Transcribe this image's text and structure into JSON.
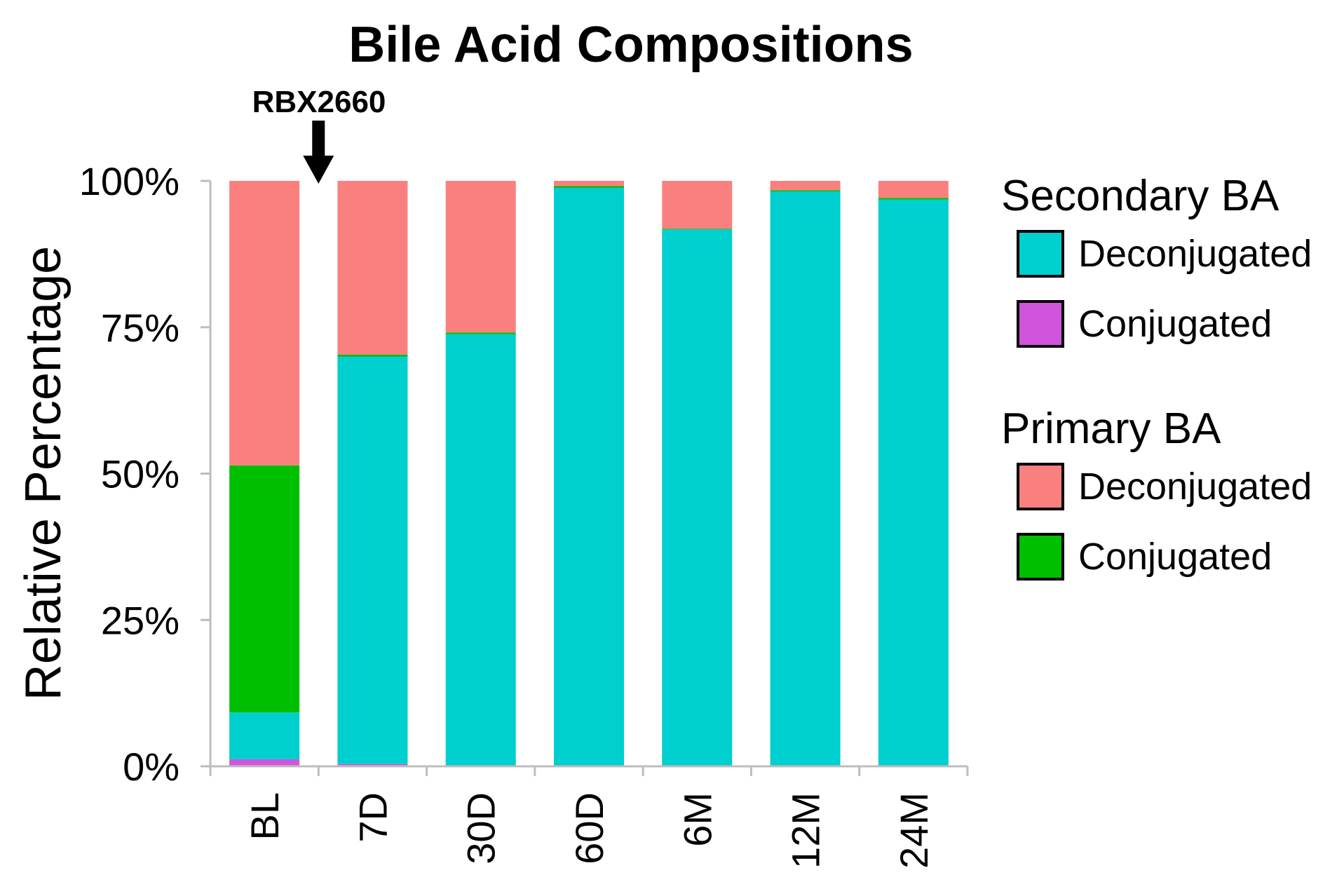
{
  "chart_data": {
    "type": "bar",
    "stacked": true,
    "percent": true,
    "title": "Bile Acid Compositions",
    "ylabel": "Relative Percentage",
    "xlabel": "",
    "ylim": [
      0,
      100
    ],
    "yticks": [
      0,
      25,
      50,
      75,
      100
    ],
    "ytick_labels": [
      "0%",
      "25%",
      "50%",
      "75%",
      "100%"
    ],
    "categories": [
      "BL",
      "7D",
      "30D",
      "60D",
      "6M",
      "12M",
      "24M"
    ],
    "series": [
      {
        "name": "Conjugated",
        "group": "Secondary BA",
        "color": "#d155dc",
        "values": [
          1.2,
          0.4,
          0.0,
          0.0,
          0.0,
          0.0,
          0.0
        ]
      },
      {
        "name": "Deconjugated",
        "group": "Secondary BA",
        "color": "#00cfcf",
        "values": [
          8.0,
          69.6,
          73.8,
          98.8,
          91.7,
          98.2,
          96.8
        ]
      },
      {
        "name": "Conjugated",
        "group": "Primary BA",
        "color": "#00bf00",
        "values": [
          42.2,
          0.3,
          0.3,
          0.3,
          0.1,
          0.2,
          0.3
        ]
      },
      {
        "name": "Deconjugated",
        "group": "Primary BA",
        "color": "#fa8080",
        "values": [
          48.6,
          29.7,
          25.9,
          0.9,
          8.2,
          1.6,
          2.9
        ]
      }
    ],
    "legend": {
      "position": "right",
      "groups": [
        {
          "title": "Secondary BA",
          "items": [
            {
              "label": "Deconjugated",
              "color": "#00cfcf"
            },
            {
              "label": "Conjugated",
              "color": "#d155dc"
            }
          ]
        },
        {
          "title": "Primary BA",
          "items": [
            {
              "label": "Deconjugated",
              "color": "#fa8080"
            },
            {
              "label": "Conjugated",
              "color": "#00bf00"
            }
          ]
        }
      ]
    },
    "annotation": {
      "text": "RBX2660",
      "between": [
        "BL",
        "7D"
      ]
    },
    "grid": false
  }
}
